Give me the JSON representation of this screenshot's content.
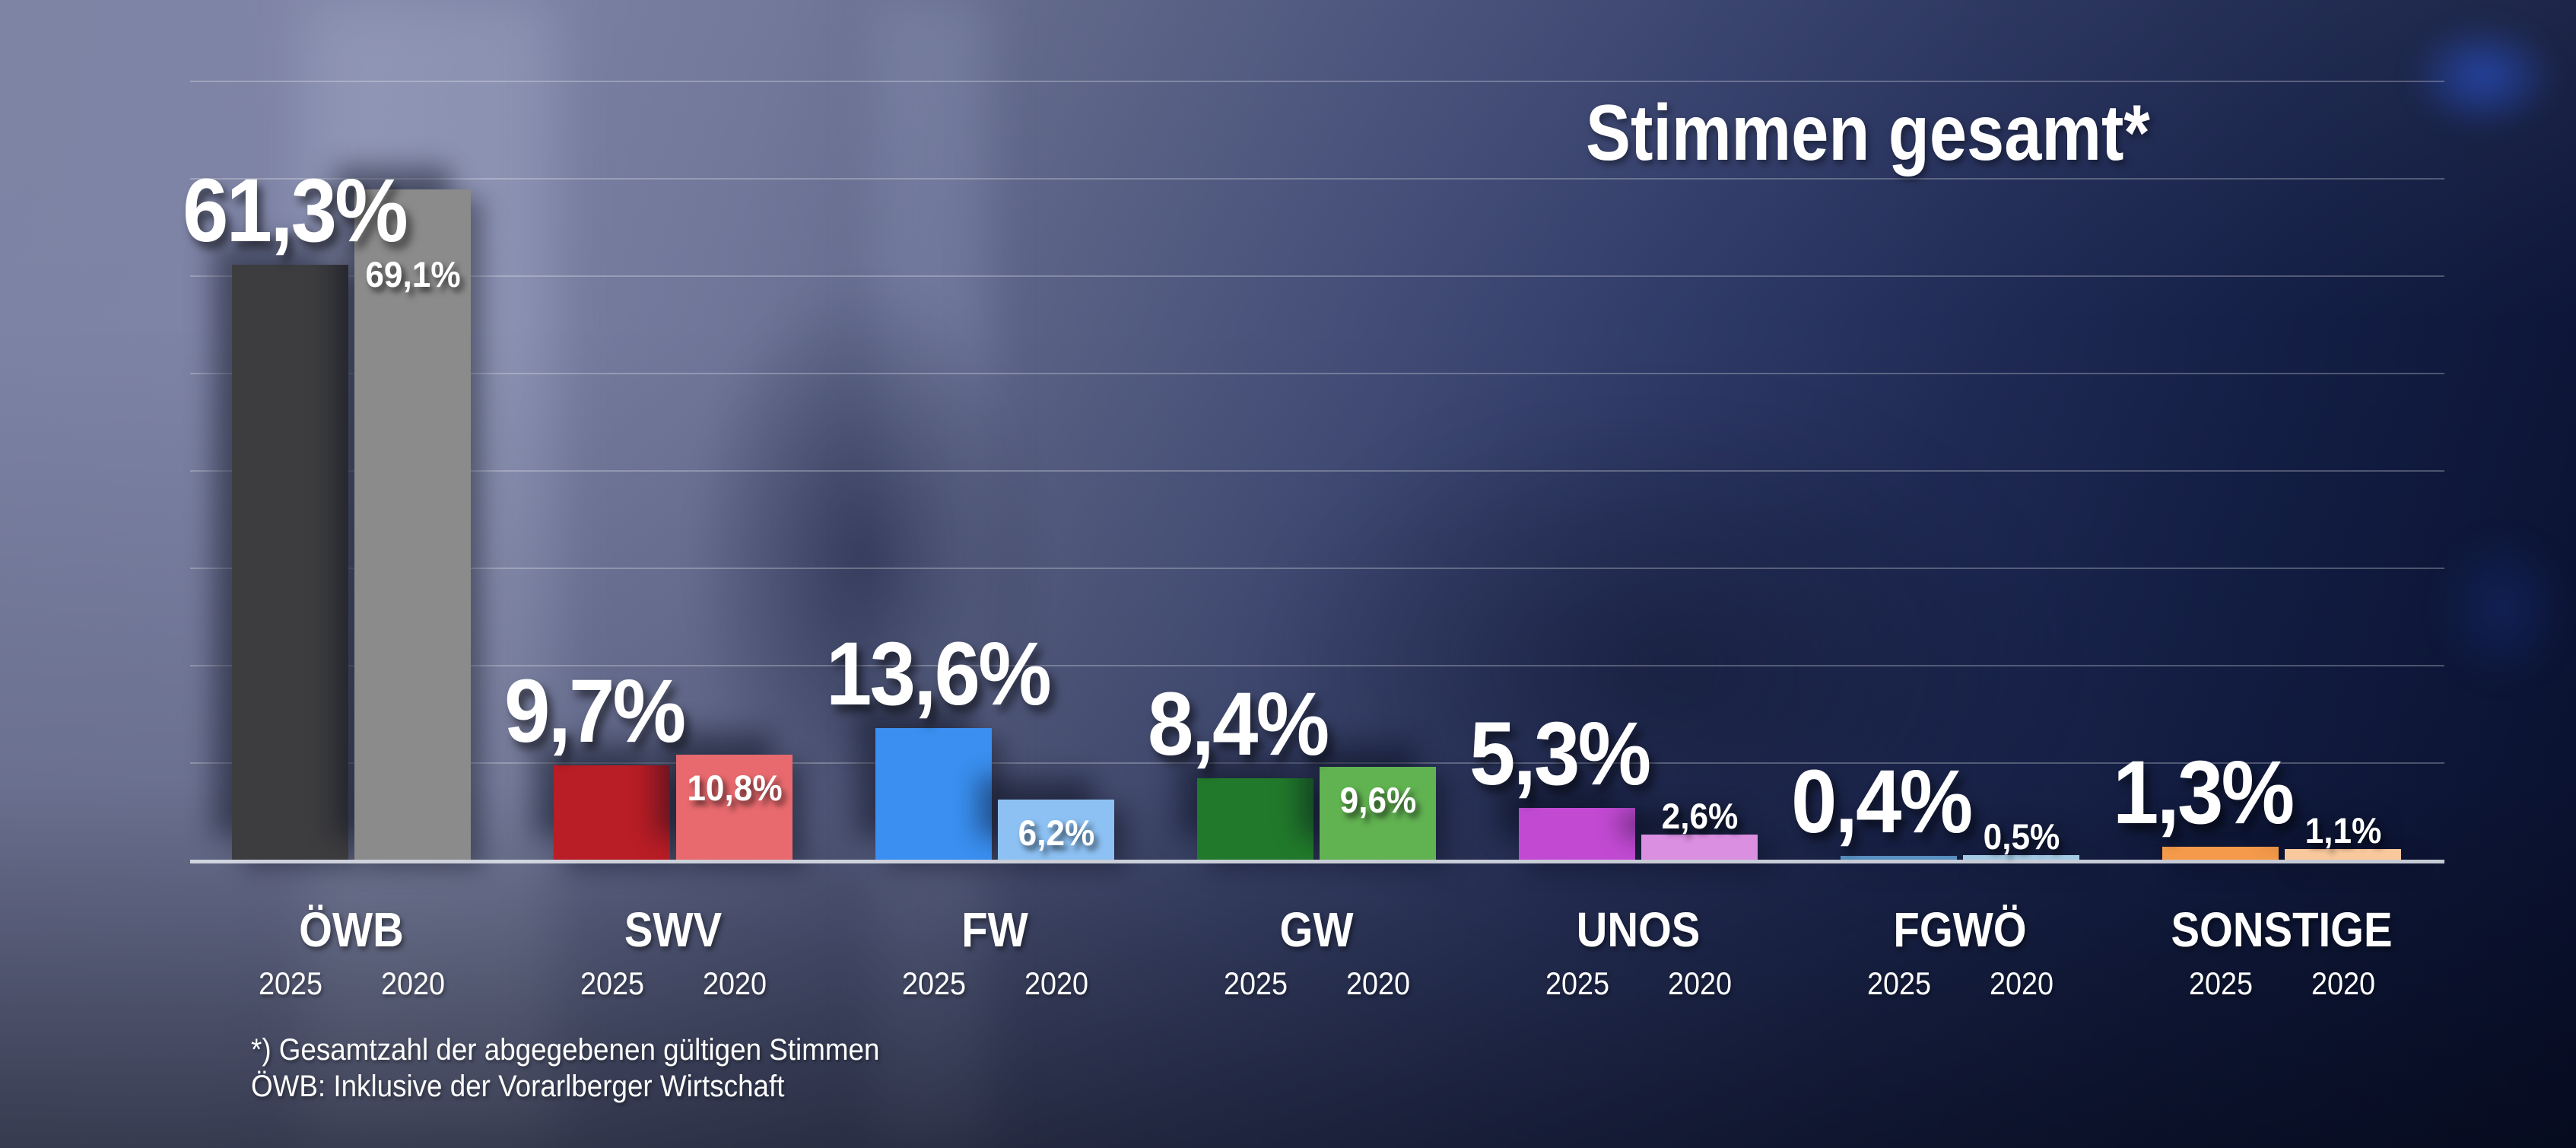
{
  "title": "Stimmen gesamt*",
  "years": {
    "current": "2025",
    "previous": "2020"
  },
  "footnote": {
    "line1": "*) Gesamtzahl der abgegebenen gültigen Stimmen",
    "line2": "ÖWB: Inklusive der Vorarlberger Wirtschaft"
  },
  "chart_data": {
    "type": "bar",
    "title": "Stimmen gesamt*",
    "categories": [
      "ÖWB",
      "SWV",
      "FW",
      "GW",
      "UNOS",
      "FGWÖ",
      "SONSTIGE"
    ],
    "series": [
      {
        "name": "2025",
        "values": [
          61.3,
          9.7,
          13.6,
          8.4,
          5.3,
          0.4,
          1.3
        ]
      },
      {
        "name": "2020",
        "values": [
          69.1,
          10.8,
          6.2,
          9.6,
          2.6,
          0.5,
          1.1
        ]
      }
    ],
    "value_labels_2025": [
      "61,3%",
      "9,7%",
      "13,6%",
      "8,4%",
      "5,3%",
      "0,4%",
      "1,3%"
    ],
    "value_labels_2020": [
      "69,1%",
      "10,8%",
      "6,2%",
      "9,6%",
      "2,6%",
      "0,5%",
      "1,1%"
    ],
    "ylabel": "",
    "xlabel": "",
    "ylim": [
      0,
      80
    ],
    "grid": true,
    "gridline_step_pct": 10,
    "legend_position": "year-labels-below-bars"
  },
  "parties": [
    {
      "name": "ÖWB",
      "label_2025": "61,3%",
      "pct_2025": 61.3,
      "color_2025": "#3d3d3f",
      "label_2020": "69,1%",
      "pct_2020": 69.1,
      "color_2020": "#8b8b8b"
    },
    {
      "name": "SWV",
      "label_2025": "9,7%",
      "pct_2025": 9.7,
      "color_2025": "#b91d25",
      "label_2020": "10,8%",
      "pct_2020": 10.8,
      "color_2020": "#e86a6e"
    },
    {
      "name": "FW",
      "label_2025": "13,6%",
      "pct_2025": 13.6,
      "color_2025": "#3a8ff0",
      "label_2020": "6,2%",
      "pct_2020": 6.2,
      "color_2020": "#8dc1f3"
    },
    {
      "name": "GW",
      "label_2025": "8,4%",
      "pct_2025": 8.4,
      "color_2025": "#217a2b",
      "label_2020": "9,6%",
      "pct_2020": 9.6,
      "color_2020": "#61b251"
    },
    {
      "name": "UNOS",
      "label_2025": "5,3%",
      "pct_2025": 5.3,
      "color_2025": "#c24ad3",
      "label_2020": "2,6%",
      "pct_2020": 2.6,
      "color_2020": "#db8fe1"
    },
    {
      "name": "FGWÖ",
      "label_2025": "0,4%",
      "pct_2025": 0.4,
      "color_2025": "#5890c0",
      "label_2020": "0,5%",
      "pct_2020": 0.5,
      "color_2020": "#a4cbe4"
    },
    {
      "name": "SONSTIGE",
      "label_2025": "1,3%",
      "pct_2025": 1.3,
      "color_2025": "#f49a4a",
      "label_2020": "1,1%",
      "pct_2020": 1.1,
      "color_2020": "#f9c89c"
    }
  ]
}
